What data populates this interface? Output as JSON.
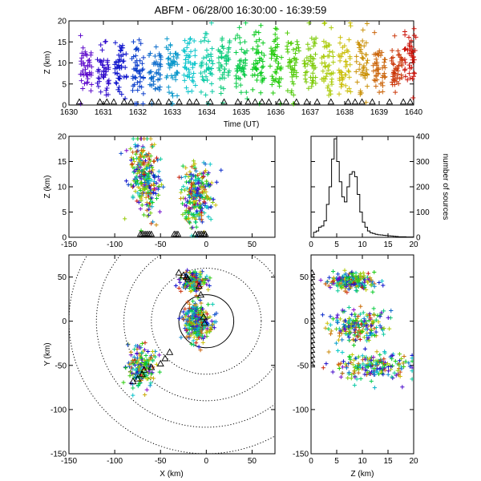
{
  "title": "ABFM - 06/28/00 16:30:00 - 16:39:59",
  "chart_data": [
    {
      "id": "time_height",
      "type": "scatter",
      "xlabel": "Time (UT)",
      "ylabel": "Z (km)",
      "xlim": [
        1630,
        1640
      ],
      "ylim": [
        0,
        20
      ],
      "xticks": [
        "1630",
        "1631",
        "1632",
        "1633",
        "1634",
        "1635",
        "1636",
        "1637",
        "1638",
        "1639",
        "1640"
      ],
      "yticks": [
        "0",
        "5",
        "10",
        "15",
        "20"
      ],
      "color_by": "time",
      "clusters": [
        {
          "t": 1630.5,
          "zc": 8,
          "spread": 3
        },
        {
          "t": 1631.0,
          "zc": 8,
          "spread": 3
        },
        {
          "t": 1631.5,
          "zc": 9,
          "spread": 4
        },
        {
          "t": 1632.0,
          "zc": 8,
          "spread": 4
        },
        {
          "t": 1632.5,
          "zc": 8,
          "spread": 3
        },
        {
          "t": 1633.0,
          "zc": 9,
          "spread": 4
        },
        {
          "t": 1633.5,
          "zc": 10,
          "spread": 4
        },
        {
          "t": 1634.0,
          "zc": 10,
          "spread": 4
        },
        {
          "t": 1634.5,
          "zc": 10,
          "spread": 4
        },
        {
          "t": 1635.0,
          "zc": 9,
          "spread": 4
        },
        {
          "t": 1635.5,
          "zc": 10,
          "spread": 4
        },
        {
          "t": 1636.0,
          "zc": 9,
          "spread": 4
        },
        {
          "t": 1636.5,
          "zc": 9,
          "spread": 4
        },
        {
          "t": 1637.0,
          "zc": 10,
          "spread": 4
        },
        {
          "t": 1637.5,
          "zc": 10,
          "spread": 5
        },
        {
          "t": 1638.0,
          "zc": 10,
          "spread": 4
        },
        {
          "t": 1638.5,
          "zc": 9,
          "spread": 4
        },
        {
          "t": 1639.0,
          "zc": 9,
          "spread": 3
        },
        {
          "t": 1639.5,
          "zc": 9,
          "spread": 3
        },
        {
          "t": 1639.9,
          "zc": 10,
          "spread": 4
        }
      ],
      "ground_triangles_t": [
        1630.3,
        1630.9,
        1631.1,
        1631.3,
        1631.6,
        1631.8,
        1632.4,
        1632.6,
        1632.9,
        1633.2,
        1633.5,
        1633.7,
        1634.1,
        1634.5,
        1634.9,
        1635.2,
        1635.4,
        1635.6,
        1635.8,
        1636.1,
        1636.3,
        1636.6,
        1636.9,
        1637.2,
        1637.6,
        1638.1,
        1638.3,
        1638.5,
        1638.8,
        1639.3,
        1639.7,
        1639.9
      ]
    },
    {
      "id": "x_height",
      "type": "scatter",
      "xlim": [
        -150,
        75
      ],
      "ylim": [
        0,
        20
      ],
      "xticks": [
        "-150",
        "-100",
        "-50",
        "0",
        "50"
      ],
      "yticks": [
        "0",
        "5",
        "10",
        "15",
        "20"
      ],
      "ylabel": "Z (km)",
      "clusters": [
        {
          "x": -68,
          "z": 12,
          "sx": 8,
          "sz": 4
        },
        {
          "x": -10,
          "z": 8,
          "sx": 8,
          "sz": 3
        }
      ],
      "ground_triangles_x": [
        -72,
        -70,
        -68,
        -66,
        -64,
        -62,
        -60,
        -35,
        -33,
        -31,
        -12,
        -9,
        -7,
        -5,
        -3,
        -1
      ]
    },
    {
      "id": "height_histogram",
      "type": "histogram",
      "xlim": [
        0,
        20
      ],
      "ylim": [
        0,
        400
      ],
      "xticks": [
        "0",
        "5",
        "10",
        "15",
        "20"
      ],
      "yticks": [
        "0",
        "100",
        "200",
        "300",
        "400"
      ],
      "ylabel": "number of sources",
      "bin_width": 0.5,
      "counts": [
        0,
        20,
        25,
        40,
        45,
        65,
        130,
        200,
        310,
        390,
        300,
        220,
        160,
        140,
        200,
        250,
        260,
        240,
        170,
        100,
        60,
        40,
        25,
        18,
        15,
        12,
        10,
        9,
        8,
        7,
        6,
        5,
        4,
        3,
        2,
        2,
        2,
        1,
        1,
        1
      ]
    },
    {
      "id": "plan_view",
      "type": "scatter",
      "xlabel": "X (km)",
      "ylabel": "Y (km)",
      "xlim": [
        -150,
        75
      ],
      "ylim": [
        -150,
        75
      ],
      "xticks": [
        "-150",
        "-100",
        "-50",
        "0",
        "50"
      ],
      "yticks": [
        "-150",
        "-100",
        "-50",
        "0",
        "50"
      ],
      "range_rings_km": [
        30,
        60,
        90,
        120,
        150
      ],
      "solid_ring_km": 30,
      "clusters": [
        {
          "x": -10,
          "y": 0,
          "sx": 7,
          "sy": 10
        },
        {
          "x": -15,
          "y": 45,
          "sx": 7,
          "sy": 5
        },
        {
          "x": -72,
          "y": -52,
          "sx": 8,
          "sy": 12
        }
      ],
      "triangles": [
        [
          -30,
          55
        ],
        [
          -25,
          52
        ],
        [
          -22,
          50
        ],
        [
          -20,
          48
        ],
        [
          -8,
          40
        ],
        [
          -6,
          30
        ],
        [
          -3,
          5
        ],
        [
          -2,
          -2
        ],
        [
          -40,
          -35
        ],
        [
          -45,
          -42
        ],
        [
          -50,
          -48
        ],
        [
          -60,
          -52
        ],
        [
          -68,
          -55
        ],
        [
          -70,
          -60
        ],
        [
          -75,
          -65
        ],
        [
          -80,
          -68
        ]
      ]
    },
    {
      "id": "height_y",
      "type": "scatter",
      "xlabel": "Z (km)",
      "xlim": [
        0,
        20
      ],
      "ylim": [
        -150,
        75
      ],
      "xticks": [
        "0",
        "5",
        "10",
        "15",
        "20"
      ],
      "yticks": [
        "-150",
        "-100",
        "-50",
        "0",
        "50"
      ],
      "clusters": [
        {
          "z": 8,
          "y": 45,
          "sz": 2.5,
          "sy": 5
        },
        {
          "z": 9,
          "y": -5,
          "sz": 3,
          "sy": 8
        },
        {
          "z": 12,
          "y": -50,
          "sz": 4,
          "sy": 8
        }
      ]
    }
  ]
}
